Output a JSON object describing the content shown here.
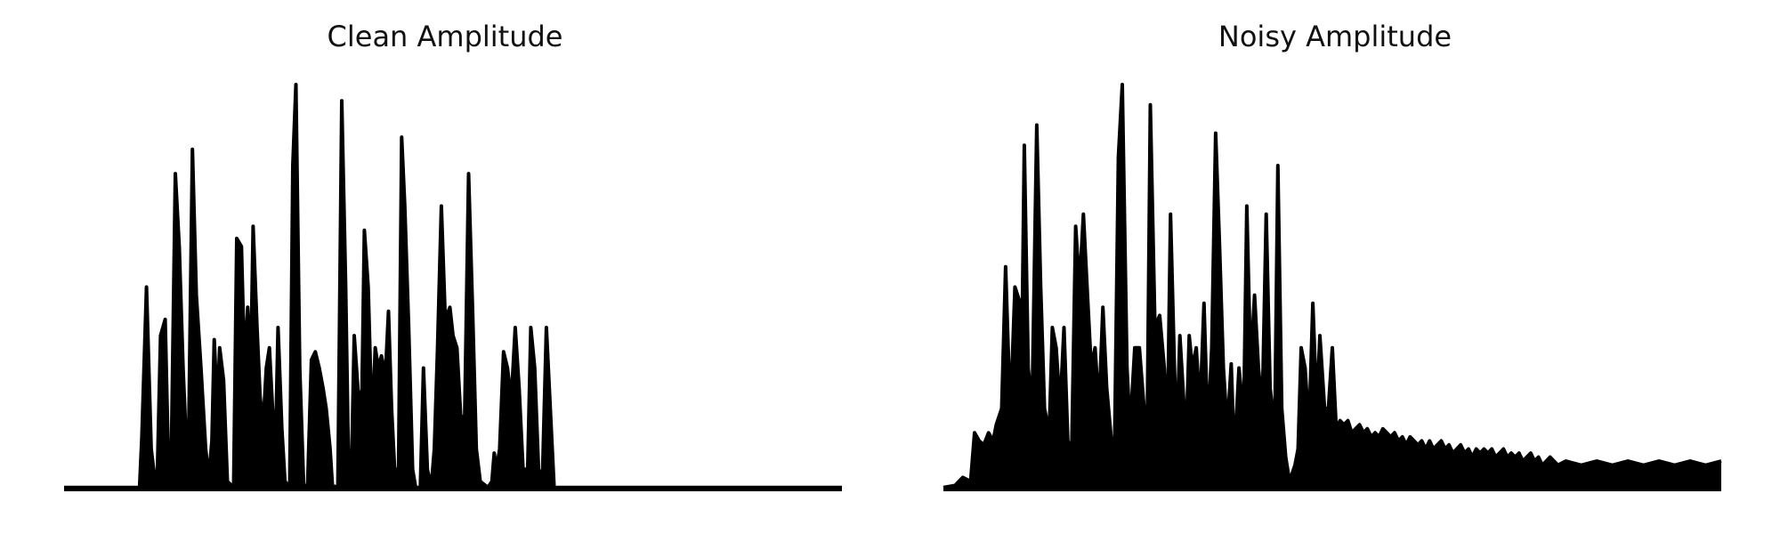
{
  "figure": {
    "background": "#ffffff",
    "line_color": "#000000"
  },
  "chart_data": [
    {
      "type": "area",
      "title": "Clean Amplitude",
      "xlabel": "",
      "ylabel": "",
      "axes_visible": false,
      "grid": false,
      "ylim": [
        0,
        1
      ],
      "peaks": [
        [
          0.0,
          0.005
        ],
        [
          0.097,
          0.005
        ],
        [
          0.1,
          0.13
        ],
        [
          0.106,
          0.5
        ],
        [
          0.112,
          0.1
        ],
        [
          0.118,
          0.005
        ],
        [
          0.12,
          0.05
        ],
        [
          0.124,
          0.38
        ],
        [
          0.13,
          0.42
        ],
        [
          0.134,
          0.08
        ],
        [
          0.138,
          0.1
        ],
        [
          0.143,
          0.78
        ],
        [
          0.148,
          0.6
        ],
        [
          0.153,
          0.3
        ],
        [
          0.157,
          0.12
        ],
        [
          0.16,
          0.1
        ],
        [
          0.165,
          0.84
        ],
        [
          0.17,
          0.48
        ],
        [
          0.176,
          0.3
        ],
        [
          0.182,
          0.1
        ],
        [
          0.186,
          0.03
        ],
        [
          0.19,
          0.12
        ],
        [
          0.193,
          0.37
        ],
        [
          0.197,
          0.2
        ],
        [
          0.2,
          0.35
        ],
        [
          0.205,
          0.27
        ],
        [
          0.21,
          0.02
        ],
        [
          0.218,
          0.005
        ],
        [
          0.222,
          0.62
        ],
        [
          0.228,
          0.6
        ],
        [
          0.232,
          0.3
        ],
        [
          0.236,
          0.45
        ],
        [
          0.24,
          0.3
        ],
        [
          0.243,
          0.65
        ],
        [
          0.248,
          0.4
        ],
        [
          0.252,
          0.23
        ],
        [
          0.256,
          0.16
        ],
        [
          0.26,
          0.3
        ],
        [
          0.264,
          0.35
        ],
        [
          0.268,
          0.2
        ],
        [
          0.272,
          0.12
        ],
        [
          0.275,
          0.4
        ],
        [
          0.28,
          0.15
        ],
        [
          0.284,
          0.02
        ],
        [
          0.29,
          0.005
        ],
        [
          0.294,
          0.8
        ],
        [
          0.298,
          1.0
        ],
        [
          0.303,
          0.3
        ],
        [
          0.308,
          0.01
        ],
        [
          0.313,
          0.01
        ],
        [
          0.318,
          0.32
        ],
        [
          0.323,
          0.34
        ],
        [
          0.328,
          0.3
        ],
        [
          0.333,
          0.25
        ],
        [
          0.337,
          0.2
        ],
        [
          0.342,
          0.1
        ],
        [
          0.345,
          0.01
        ],
        [
          0.352,
          0.005
        ],
        [
          0.357,
          0.96
        ],
        [
          0.362,
          0.5
        ],
        [
          0.366,
          0.02
        ],
        [
          0.37,
          0.1
        ],
        [
          0.373,
          0.38
        ],
        [
          0.378,
          0.24
        ],
        [
          0.383,
          0.24
        ],
        [
          0.386,
          0.64
        ],
        [
          0.391,
          0.5
        ],
        [
          0.396,
          0.15
        ],
        [
          0.4,
          0.35
        ],
        [
          0.404,
          0.3
        ],
        [
          0.408,
          0.33
        ],
        [
          0.413,
          0.28
        ],
        [
          0.417,
          0.44
        ],
        [
          0.421,
          0.2
        ],
        [
          0.425,
          0.05
        ],
        [
          0.43,
          0.05
        ],
        [
          0.434,
          0.87
        ],
        [
          0.438,
          0.7
        ],
        [
          0.443,
          0.4
        ],
        [
          0.448,
          0.05
        ],
        [
          0.452,
          0.005
        ],
        [
          0.458,
          0.005
        ],
        [
          0.462,
          0.3
        ],
        [
          0.467,
          0.05
        ],
        [
          0.472,
          0.005
        ],
        [
          0.476,
          0.1
        ],
        [
          0.48,
          0.34
        ],
        [
          0.485,
          0.7
        ],
        [
          0.49,
          0.42
        ],
        [
          0.496,
          0.45
        ],
        [
          0.5,
          0.38
        ],
        [
          0.505,
          0.35
        ],
        [
          0.51,
          0.18
        ],
        [
          0.515,
          0.18
        ],
        [
          0.52,
          0.78
        ],
        [
          0.525,
          0.45
        ],
        [
          0.53,
          0.1
        ],
        [
          0.535,
          0.02
        ],
        [
          0.545,
          0.005
        ],
        [
          0.55,
          0.02
        ],
        [
          0.553,
          0.09
        ],
        [
          0.556,
          0.05
        ],
        [
          0.56,
          0.1
        ],
        [
          0.565,
          0.34
        ],
        [
          0.57,
          0.3
        ],
        [
          0.575,
          0.22
        ],
        [
          0.58,
          0.4
        ],
        [
          0.585,
          0.25
        ],
        [
          0.59,
          0.05
        ],
        [
          0.596,
          0.05
        ],
        [
          0.6,
          0.4
        ],
        [
          0.605,
          0.3
        ],
        [
          0.61,
          0.05
        ],
        [
          0.615,
          0.03
        ],
        [
          0.62,
          0.4
        ],
        [
          0.625,
          0.2
        ],
        [
          0.63,
          0.005
        ],
        [
          0.7,
          0.005
        ],
        [
          0.85,
          0.005
        ],
        [
          1.0,
          0.005
        ]
      ]
    },
    {
      "type": "area",
      "title": "Noisy Amplitude",
      "xlabel": "",
      "ylabel": "",
      "axes_visible": false,
      "grid": false,
      "ylim": [
        0,
        1
      ],
      "peaks": [
        [
          0.0,
          0.005
        ],
        [
          0.015,
          0.01
        ],
        [
          0.025,
          0.03
        ],
        [
          0.035,
          0.02
        ],
        [
          0.04,
          0.14
        ],
        [
          0.046,
          0.12
        ],
        [
          0.052,
          0.11
        ],
        [
          0.058,
          0.14
        ],
        [
          0.064,
          0.12
        ],
        [
          0.068,
          0.16
        ],
        [
          0.075,
          0.2
        ],
        [
          0.08,
          0.55
        ],
        [
          0.086,
          0.18
        ],
        [
          0.092,
          0.5
        ],
        [
          0.097,
          0.47
        ],
        [
          0.1,
          0.2
        ],
        [
          0.104,
          0.85
        ],
        [
          0.109,
          0.3
        ],
        [
          0.114,
          0.2
        ],
        [
          0.12,
          0.9
        ],
        [
          0.125,
          0.5
        ],
        [
          0.13,
          0.2
        ],
        [
          0.136,
          0.14
        ],
        [
          0.14,
          0.4
        ],
        [
          0.145,
          0.35
        ],
        [
          0.15,
          0.2
        ],
        [
          0.155,
          0.4
        ],
        [
          0.16,
          0.12
        ],
        [
          0.165,
          0.1
        ],
        [
          0.17,
          0.65
        ],
        [
          0.175,
          0.5
        ],
        [
          0.18,
          0.68
        ],
        [
          0.186,
          0.45
        ],
        [
          0.19,
          0.3
        ],
        [
          0.195,
          0.35
        ],
        [
          0.2,
          0.2
        ],
        [
          0.205,
          0.45
        ],
        [
          0.21,
          0.25
        ],
        [
          0.216,
          0.12
        ],
        [
          0.22,
          0.1
        ],
        [
          0.225,
          0.82
        ],
        [
          0.23,
          1.0
        ],
        [
          0.236,
          0.3
        ],
        [
          0.24,
          0.15
        ],
        [
          0.246,
          0.35
        ],
        [
          0.252,
          0.35
        ],
        [
          0.258,
          0.2
        ],
        [
          0.262,
          0.15
        ],
        [
          0.266,
          0.95
        ],
        [
          0.272,
          0.4
        ],
        [
          0.278,
          0.43
        ],
        [
          0.284,
          0.3
        ],
        [
          0.288,
          0.14
        ],
        [
          0.292,
          0.68
        ],
        [
          0.297,
          0.3
        ],
        [
          0.3,
          0.12
        ],
        [
          0.304,
          0.38
        ],
        [
          0.308,
          0.25
        ],
        [
          0.312,
          0.12
        ],
        [
          0.316,
          0.38
        ],
        [
          0.32,
          0.3
        ],
        [
          0.325,
          0.35
        ],
        [
          0.33,
          0.2
        ],
        [
          0.335,
          0.46
        ],
        [
          0.34,
          0.14
        ],
        [
          0.345,
          0.35
        ],
        [
          0.35,
          0.88
        ],
        [
          0.355,
          0.6
        ],
        [
          0.36,
          0.3
        ],
        [
          0.365,
          0.15
        ],
        [
          0.37,
          0.31
        ],
        [
          0.374,
          0.08
        ],
        [
          0.38,
          0.3
        ],
        [
          0.386,
          0.18
        ],
        [
          0.39,
          0.7
        ],
        [
          0.395,
          0.3
        ],
        [
          0.4,
          0.48
        ],
        [
          0.405,
          0.3
        ],
        [
          0.41,
          0.2
        ],
        [
          0.415,
          0.68
        ],
        [
          0.42,
          0.25
        ],
        [
          0.426,
          0.15
        ],
        [
          0.43,
          0.8
        ],
        [
          0.435,
          0.2
        ],
        [
          0.44,
          0.08
        ],
        [
          0.445,
          0.02
        ],
        [
          0.452,
          0.06
        ],
        [
          0.456,
          0.1
        ],
        [
          0.46,
          0.35
        ],
        [
          0.465,
          0.3
        ],
        [
          0.47,
          0.15
        ],
        [
          0.475,
          0.46
        ],
        [
          0.48,
          0.2
        ],
        [
          0.484,
          0.38
        ],
        [
          0.49,
          0.2
        ],
        [
          0.495,
          0.2
        ],
        [
          0.5,
          0.35
        ],
        [
          0.505,
          0.15
        ],
        [
          0.51,
          0.17
        ],
        [
          0.515,
          0.16
        ],
        [
          0.52,
          0.17
        ],
        [
          0.525,
          0.14
        ],
        [
          0.53,
          0.15
        ],
        [
          0.535,
          0.16
        ],
        [
          0.54,
          0.14
        ],
        [
          0.545,
          0.15
        ],
        [
          0.55,
          0.13
        ],
        [
          0.555,
          0.14
        ],
        [
          0.56,
          0.13
        ],
        [
          0.565,
          0.15
        ],
        [
          0.57,
          0.14
        ],
        [
          0.575,
          0.13
        ],
        [
          0.58,
          0.14
        ],
        [
          0.585,
          0.12
        ],
        [
          0.59,
          0.13
        ],
        [
          0.595,
          0.11
        ],
        [
          0.6,
          0.13
        ],
        [
          0.605,
          0.12
        ],
        [
          0.61,
          0.11
        ],
        [
          0.615,
          0.12
        ],
        [
          0.62,
          0.1
        ],
        [
          0.625,
          0.12
        ],
        [
          0.63,
          0.1
        ],
        [
          0.635,
          0.11
        ],
        [
          0.64,
          0.12
        ],
        [
          0.645,
          0.1
        ],
        [
          0.65,
          0.11
        ],
        [
          0.655,
          0.09
        ],
        [
          0.66,
          0.1
        ],
        [
          0.665,
          0.11
        ],
        [
          0.67,
          0.09
        ],
        [
          0.675,
          0.1
        ],
        [
          0.68,
          0.08
        ],
        [
          0.685,
          0.1
        ],
        [
          0.69,
          0.09
        ],
        [
          0.695,
          0.1
        ],
        [
          0.7,
          0.09
        ],
        [
          0.705,
          0.1
        ],
        [
          0.71,
          0.08
        ],
        [
          0.715,
          0.09
        ],
        [
          0.72,
          0.1
        ],
        [
          0.725,
          0.08
        ],
        [
          0.73,
          0.09
        ],
        [
          0.735,
          0.08
        ],
        [
          0.74,
          0.09
        ],
        [
          0.745,
          0.07
        ],
        [
          0.75,
          0.08
        ],
        [
          0.755,
          0.09
        ],
        [
          0.76,
          0.07
        ],
        [
          0.765,
          0.08
        ],
        [
          0.77,
          0.06
        ],
        [
          0.78,
          0.08
        ],
        [
          0.79,
          0.06
        ],
        [
          0.8,
          0.07
        ],
        [
          0.82,
          0.06
        ],
        [
          0.84,
          0.07
        ],
        [
          0.86,
          0.06
        ],
        [
          0.88,
          0.07
        ],
        [
          0.9,
          0.06
        ],
        [
          0.92,
          0.07
        ],
        [
          0.94,
          0.06
        ],
        [
          0.96,
          0.07
        ],
        [
          0.98,
          0.06
        ],
        [
          1.0,
          0.07
        ]
      ]
    }
  ]
}
